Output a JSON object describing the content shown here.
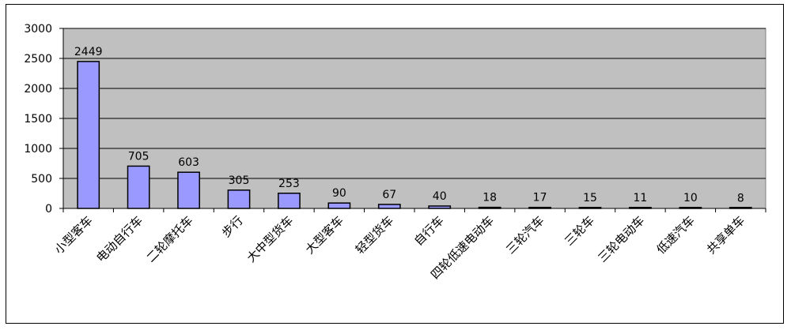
{
  "chart_data": {
    "type": "bar",
    "categories": [
      "小型客车",
      "电动自行车",
      "二轮摩托车",
      "步行",
      "大中型货车",
      "大型客车",
      "轻型货车",
      "自行车",
      "四轮低速电动车",
      "三轮汽车",
      "三轮车",
      "三轮电动车",
      "低速汽车",
      "共享单车"
    ],
    "values": [
      2449,
      705,
      603,
      305,
      253,
      90,
      67,
      40,
      18,
      17,
      15,
      11,
      10,
      8
    ],
    "data_labels": [
      "2449",
      "705",
      "603",
      "305",
      "253",
      "90",
      "67",
      "40",
      "18",
      "17",
      "15",
      "11",
      "10",
      "8"
    ],
    "yticks": [
      0,
      500,
      1000,
      1500,
      2000,
      2500,
      3000
    ],
    "ytick_labels": [
      "0",
      "500",
      "1000",
      "1500",
      "2000",
      "2500",
      "3000"
    ],
    "ylim": [
      0,
      3000
    ],
    "grid": true,
    "legend": "none",
    "colors": {
      "bar_fill": "#9999ff",
      "bar_stroke": "#000000",
      "plot_bg": "#c0c0c0",
      "grid": "#000000"
    }
  }
}
